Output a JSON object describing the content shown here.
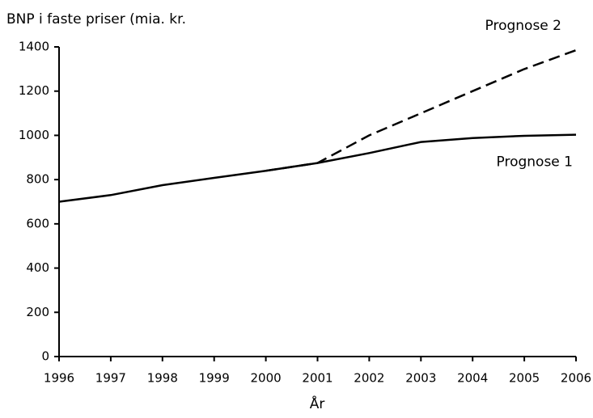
{
  "chart_data": {
    "type": "line",
    "title": "BNP i faste priser (mia. kr.",
    "x_label": "År",
    "x": [
      1996,
      1997,
      1998,
      1999,
      2000,
      2001,
      2002,
      2003,
      2004,
      2005,
      2006
    ],
    "series": [
      {
        "name": "Prognose 1",
        "color": "#000000",
        "style": "solid",
        "values": [
          700,
          730,
          775,
          808,
          840,
          875,
          920,
          970,
          988,
          998,
          1003
        ]
      },
      {
        "name": "Prognose 2",
        "color": "#000000",
        "style": "dashed",
        "values": [
          null,
          null,
          null,
          null,
          840,
          875,
          1000,
          1100,
          1200,
          1300,
          1385
        ]
      }
    ],
    "xlim": [
      1996,
      2006
    ],
    "xticks": [
      1996,
      1997,
      1998,
      1999,
      2000,
      2001,
      2002,
      2003,
      2004,
      2005,
      2006
    ],
    "ylim": [
      0,
      1400
    ],
    "yticks": [
      0,
      200,
      400,
      600,
      800,
      1000,
      1200,
      1400
    ],
    "grid": false
  }
}
